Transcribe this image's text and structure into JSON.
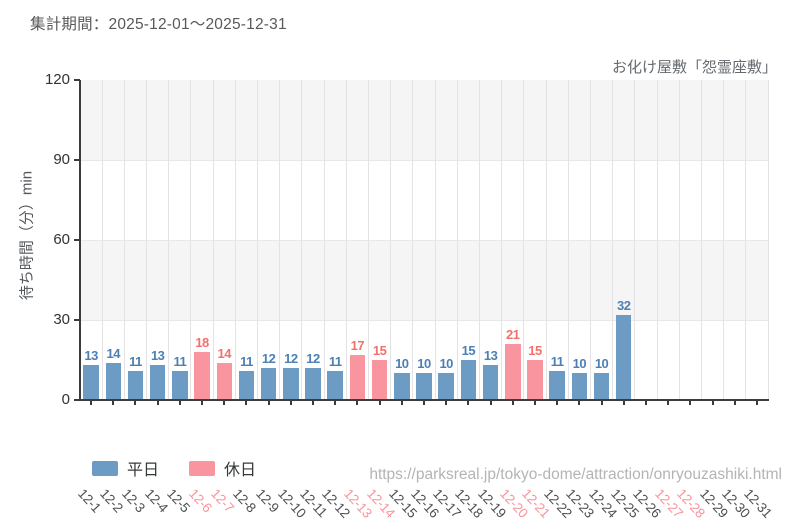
{
  "header": {
    "period_label": "集計期間：2025-12-01～2025-12-31"
  },
  "chart": {
    "subtitle": "お化け屋敷「怨霊座敷」"
  },
  "legend": {
    "weekday_label": "平日",
    "holiday_label": "休日"
  },
  "footer": {
    "url": "https://parksreal.jp/tokyo-dome/attraction/onryouzashiki.html"
  },
  "colors": {
    "weekday_bar": "#6c9bc4",
    "holiday_bar": "#f8959e",
    "weekday_value_text": "#4c80b4",
    "holiday_value_text": "#f3716b",
    "weekday_tick_text": "#4c4f52",
    "holiday_tick_text": "#f8949b",
    "band_gray": "#f5f5f6",
    "band_white": "#ffffff",
    "gridline": "#e3e3e6",
    "band_border": "#e8e8ea",
    "axis_spine": "#3a3d40",
    "ytick_text": "#303336"
  },
  "chart_data": {
    "type": "bar",
    "title": "集計期間：2025-12-01～2025-12-31",
    "subtitle": "お化け屋敷「怨霊座敷」",
    "xlabel": "",
    "ylabel": "待ち時間（分）min",
    "ylim": [
      0,
      120
    ],
    "yticks": [
      0,
      30,
      60,
      90,
      120
    ],
    "grid": "vertical-per-category, alternating horizontal bands every 30",
    "legend_position": "bottom-left",
    "categories": [
      "12-1",
      "12-2",
      "12-3",
      "12-4",
      "12-5",
      "12-6",
      "12-7",
      "12-8",
      "12-9",
      "12-10",
      "12-11",
      "12-12",
      "12-13",
      "12-14",
      "12-15",
      "12-16",
      "12-17",
      "12-18",
      "12-19",
      "12-20",
      "12-21",
      "12-22",
      "12-23",
      "12-24",
      "12-25",
      "12-26",
      "12-27",
      "12-28",
      "12-29",
      "12-30",
      "12-31"
    ],
    "values": [
      13,
      14,
      11,
      13,
      11,
      18,
      14,
      11,
      12,
      12,
      12,
      11,
      17,
      15,
      10,
      10,
      10,
      15,
      13,
      21,
      15,
      11,
      10,
      10,
      32,
      null,
      null,
      null,
      null,
      null,
      null
    ],
    "day_type": [
      "weekday",
      "weekday",
      "weekday",
      "weekday",
      "weekday",
      "holiday",
      "holiday",
      "weekday",
      "weekday",
      "weekday",
      "weekday",
      "weekday",
      "holiday",
      "holiday",
      "weekday",
      "weekday",
      "weekday",
      "weekday",
      "weekday",
      "holiday",
      "holiday",
      "weekday",
      "weekday",
      "weekday",
      "weekday",
      "weekday",
      "holiday",
      "holiday",
      "weekday",
      "weekday",
      "weekday"
    ],
    "series": [
      {
        "name": "平日",
        "color": "#6c9bc4",
        "applies_to": "weekday"
      },
      {
        "name": "休日",
        "color": "#f8959e",
        "applies_to": "holiday"
      }
    ]
  }
}
